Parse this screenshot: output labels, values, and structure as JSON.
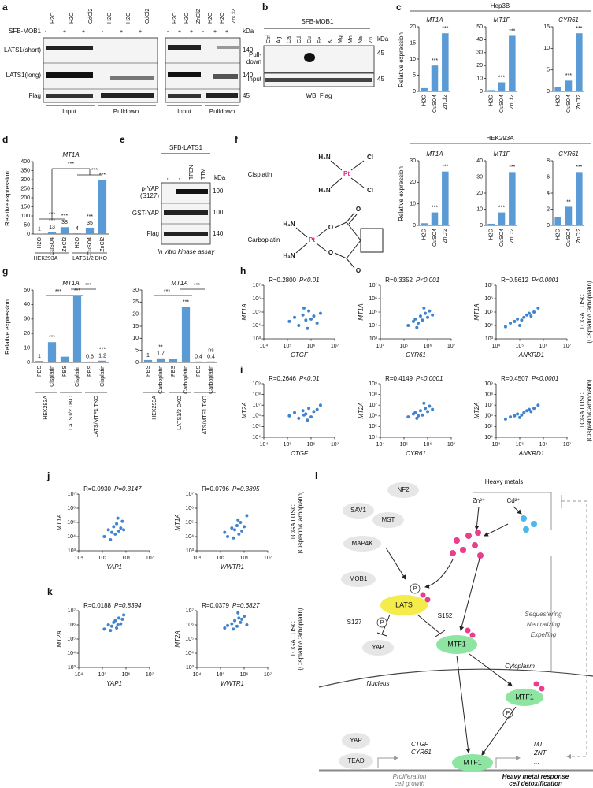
{
  "a": {
    "letter": "a",
    "construct": "SFB-MOB1",
    "lanes": [
      "H2O",
      "H2O",
      "CdCl2",
      "H2O",
      "H2O",
      "CdCl2",
      "H2O",
      "H2O",
      "ZnCl2",
      "H2O",
      "H2O",
      "ZnCl2"
    ],
    "signs": [
      "-",
      "+",
      "+",
      "-",
      "+",
      "+",
      "-",
      "+",
      "+",
      "-",
      "+",
      "+"
    ],
    "rows": [
      "LATS1(short)",
      "LATS1(long)",
      "Flag"
    ],
    "kda": "kDa",
    "markers": [
      "140",
      "140",
      "45"
    ],
    "groups": [
      "Input",
      "Pulldown",
      "Input",
      "Pulldown"
    ]
  },
  "b": {
    "letter": "b",
    "construct": "SFB-MOB1",
    "lanes": [
      "Ctrl",
      "Ag",
      "Ca",
      "Cd",
      "Cu",
      "Fe",
      "K",
      "Mg",
      "Mn",
      "Na",
      "Zn"
    ],
    "rows": [
      "Pull-",
      "down",
      "Input"
    ],
    "kda": "kDa",
    "markers": [
      "45",
      "45"
    ],
    "caption": "WB: Flag"
  },
  "c": {
    "letter": "c",
    "cells": [
      "Hep3B",
      "HEK293A"
    ],
    "ylabel": "Relative expression",
    "categories": [
      "H2O",
      "CuSO4",
      "ZnCl2"
    ],
    "charts": [
      {
        "title": "MT1A",
        "ylim": [
          0,
          20
        ],
        "yticks": [
          0,
          5,
          10,
          15,
          20
        ],
        "values": [
          1,
          8,
          18
        ],
        "stars": [
          null,
          "***",
          "***"
        ]
      },
      {
        "title": "MT1F",
        "ylim": [
          0,
          50
        ],
        "yticks": [
          0,
          10,
          20,
          30,
          40,
          50
        ],
        "values": [
          1,
          7,
          43
        ],
        "stars": [
          null,
          "***",
          "***"
        ]
      },
      {
        "title": "CYR61",
        "ylim": [
          0,
          15
        ],
        "yticks": [
          0,
          5,
          10,
          15
        ],
        "values": [
          1,
          2.5,
          13.5
        ],
        "stars": [
          null,
          "***",
          "***"
        ]
      },
      {
        "title": "MT1A",
        "ylim": [
          0,
          30
        ],
        "yticks": [
          0,
          10,
          20,
          30
        ],
        "values": [
          1,
          6,
          25
        ],
        "stars": [
          null,
          "***",
          "***"
        ]
      },
      {
        "title": "MT1F",
        "ylim": [
          0,
          40
        ],
        "yticks": [
          0,
          10,
          20,
          30,
          40
        ],
        "values": [
          1,
          8,
          33
        ],
        "stars": [
          null,
          "***",
          "***"
        ]
      },
      {
        "title": "CYR61",
        "ylim": [
          0,
          8
        ],
        "yticks": [
          0,
          2,
          4,
          6,
          8
        ],
        "values": [
          1,
          2.3,
          6.6
        ],
        "stars": [
          null,
          "**",
          "***"
        ]
      }
    ]
  },
  "d": {
    "letter": "d",
    "ylabel": "Relative expression",
    "chart": {
      "title": "MT1A",
      "categories": [
        "H2O",
        "CuSO4",
        "ZnCl2",
        "H2O",
        "CuSO4",
        "ZnCl2"
      ],
      "ylim": [
        0,
        400
      ],
      "yticks": [
        0,
        50,
        100,
        150,
        200,
        250,
        300,
        350,
        400
      ],
      "values": [
        1,
        13,
        38,
        4,
        35,
        300
      ],
      "value_labels": [
        "1",
        "13",
        "38",
        "4",
        "35",
        null
      ],
      "stars": [
        null,
        "***",
        "***",
        null,
        "***",
        "***"
      ],
      "bracket_stars": [
        "***",
        "***",
        "***"
      ]
    },
    "groups": [
      "HEK293A",
      "LATS1/2 DKO"
    ]
  },
  "e": {
    "letter": "e",
    "construct": "SFB-LATS1",
    "lanes": [
      "-",
      "-",
      "TPEN",
      "TTM"
    ],
    "kda": "kDa",
    "rows": [
      "p-YAP",
      "(S127)",
      "GST-YAP",
      "Flag"
    ],
    "markers": [
      "100",
      "100",
      "140"
    ],
    "caption": "In vitro kinase assay"
  },
  "f": {
    "letter": "f",
    "names": [
      "Cisplatin",
      "Carboplatin"
    ],
    "cis_atoms": [
      "H₃N",
      "Cl",
      "Pt",
      "H₃N",
      "Cl"
    ],
    "carbo_atoms": [
      "H₃N",
      "H₃N",
      "Pt",
      "O",
      "O",
      "O",
      "O"
    ]
  },
  "g": {
    "letter": "g",
    "ylabel": "Relative expression",
    "groups": [
      "HEK293A",
      "LATS1/2 DKO",
      "LATS/MTF1 TKO"
    ],
    "left": {
      "title": "MT1A",
      "categories": [
        "PBS",
        "Cisplatin",
        "PBS",
        "Cisplatin",
        "PBS",
        "Cisplatin"
      ],
      "ylim": [
        0,
        50
      ],
      "yticks": [
        0,
        10,
        20,
        30,
        40,
        50
      ],
      "values": [
        1,
        14,
        4,
        46,
        0.6,
        1.2
      ],
      "value_labels": [
        "1",
        null,
        null,
        null,
        "0.6",
        "1.2"
      ],
      "stars": [
        null,
        "***",
        null,
        "***",
        null,
        "***"
      ],
      "bracket_stars": [
        "***",
        "***"
      ]
    },
    "right": {
      "title": "MT1A",
      "categories": [
        "PBS",
        "Carboplatin",
        "PBS",
        "Carboplatin",
        "PBS",
        "Carboplatin"
      ],
      "ylim": [
        0,
        30
      ],
      "yticks": [
        0,
        5,
        10,
        15,
        20,
        25,
        30
      ],
      "values": [
        1,
        1.7,
        1.5,
        23,
        0.4,
        0.4
      ],
      "value_labels": [
        "1",
        "1.7",
        null,
        null,
        "0.4",
        "0.4"
      ],
      "stars": [
        null,
        "**",
        null,
        "***",
        null,
        "ns"
      ],
      "bracket_stars": [
        "***",
        "***"
      ]
    }
  },
  "h": {
    "letter": "h",
    "type": "scatter",
    "log": true,
    "side_label": [
      "TCGA LUSC",
      "(Cisplatin/Carboplatin)"
    ],
    "xlim": [
      10000.0,
      10000000.0
    ],
    "xticks": [
      {
        "value": 10000.0,
        "label": "10⁴"
      },
      {
        "value": 100000.0,
        "label": "10⁵"
      },
      {
        "value": 1000000.0,
        "label": "10⁶"
      },
      {
        "value": 10000000.0,
        "label": "10⁷"
      }
    ],
    "ylim": [
      1000.0,
      10000000.0
    ],
    "yticks": [
      {
        "value": 1000.0,
        "label": "10³"
      },
      {
        "value": 10000.0,
        "label": "10⁴"
      },
      {
        "value": 100000.0,
        "label": "10⁵"
      },
      {
        "value": 1000000.0,
        "label": "10⁶"
      },
      {
        "value": 10000000.0,
        "label": "10⁷"
      }
    ],
    "plots": [
      {
        "r": "R=0.2800",
        "p": "P<0.01",
        "ylabel": "MT1A",
        "xlabel": "CTGF",
        "x": [
          120000.0,
          200000.0,
          300000.0,
          450000.0,
          600000.0,
          800000.0,
          1000000.0,
          1300000.0,
          1800000.0,
          2500000.0,
          500000.0,
          700000.0
        ],
        "y": [
          20000.0,
          40000.0,
          10000.0,
          60000.0,
          25000.0,
          120000.0,
          30000.0,
          50000.0,
          15000.0,
          80000.0,
          200000.0,
          6000.0
        ]
      },
      {
        "r": "R=0.3352",
        "p": "P<0.001",
        "ylabel": "MT1A",
        "xlabel": "CYR61",
        "x": [
          150000.0,
          250000.0,
          300000.0,
          400000.0,
          500000.0,
          600000.0,
          800000.0,
          1000000.0,
          1200000.0,
          1600000.0,
          350000.0,
          700000.0
        ],
        "y": [
          10000.0,
          20000.0,
          30000.0,
          15000.0,
          50000.0,
          25000.0,
          80000.0,
          40000.0,
          120000.0,
          60000.0,
          7000.0,
          200000.0
        ]
      },
      {
        "r": "R=0.5612",
        "p": "P<0.0001",
        "ylabel": "MT1A",
        "xlabel": "ANKRD1",
        "x": [
          25000.0,
          40000.0,
          60000.0,
          80000.0,
          100000.0,
          150000.0,
          200000.0,
          300000.0,
          400000.0,
          600000.0,
          120000.0,
          250000.0
        ],
        "y": [
          8000.0,
          15000.0,
          20000.0,
          30000.0,
          10000.0,
          40000.0,
          60000.0,
          50000.0,
          100000.0,
          200000.0,
          25000.0,
          80000.0
        ]
      }
    ]
  },
  "i": {
    "letter": "i",
    "type": "scatter",
    "log": true,
    "side_label": [
      "TCGA LUSC",
      "(Cisplatin/Carboplatin)"
    ],
    "xlim": [
      10000.0,
      10000000.0
    ],
    "xticks": [
      {
        "value": 10000.0,
        "label": "10⁴"
      },
      {
        "value": 100000.0,
        "label": "10⁵"
      },
      {
        "value": 1000000.0,
        "label": "10⁶"
      },
      {
        "value": 10000000.0,
        "label": "10⁷"
      }
    ],
    "ylim": [
      10000.0,
      1000000000.0
    ],
    "yticks": [
      {
        "value": 10000.0,
        "label": "10⁴"
      },
      {
        "value": 100000.0,
        "label": "10⁵"
      },
      {
        "value": 1000000.0,
        "label": "10⁶"
      },
      {
        "value": 10000000.0,
        "label": "10⁷"
      },
      {
        "value": 100000000.0,
        "label": "10⁸"
      },
      {
        "value": 1000000000.0,
        "label": "10⁹"
      }
    ],
    "plots": [
      {
        "r": "R=0.2646",
        "p": "P<0.01",
        "ylabel": "MT2A",
        "xlabel": "CTGF",
        "x": [
          120000.0,
          200000.0,
          300000.0,
          450000.0,
          600000.0,
          800000.0,
          1000000.0,
          1300000.0,
          1800000.0,
          2500000.0,
          500000.0,
          700000.0
        ],
        "y": [
          1000000.0,
          2000000.0,
          600000.0,
          3000000.0,
          1500000.0,
          5000000.0,
          800000.0,
          2500000.0,
          4000000.0,
          10000000.0,
          1200000.0,
          400000.0
        ]
      },
      {
        "r": "R=0.4149",
        "p": "P<0.0001",
        "ylabel": "MT2A",
        "xlabel": "CYR61",
        "x": [
          150000.0,
          250000.0,
          300000.0,
          400000.0,
          500000.0,
          600000.0,
          800000.0,
          1000000.0,
          1200000.0,
          1600000.0,
          350000.0,
          700000.0
        ],
        "y": [
          800000.0,
          1500000.0,
          2000000.0,
          1000000.0,
          3000000.0,
          1200000.0,
          5000000.0,
          2500000.0,
          8000000.0,
          4000000.0,
          600000.0,
          15000000.0
        ]
      },
      {
        "r": "R=0.4507",
        "p": "P<0.0001",
        "ylabel": "MT2A",
        "xlabel": "ANKRD1",
        "x": [
          25000.0,
          40000.0,
          60000.0,
          80000.0,
          100000.0,
          150000.0,
          200000.0,
          300000.0,
          400000.0,
          600000.0,
          120000.0,
          250000.0
        ],
        "y": [
          500000.0,
          800000.0,
          1000000.0,
          1500000.0,
          700000.0,
          2000000.0,
          3000000.0,
          2500000.0,
          5000000.0,
          10000000.0,
          1200000.0,
          4000000.0
        ]
      }
    ]
  },
  "j": {
    "letter": "j",
    "type": "scatter",
    "log": true,
    "side_label": [
      "TCGA LUSC",
      "(Cisplatin/Carboplatin)"
    ],
    "xlim": [
      10000.0,
      10000000.0
    ],
    "xticks": [
      {
        "value": 10000.0,
        "label": "10⁴"
      },
      {
        "value": 100000.0,
        "label": "10⁵"
      },
      {
        "value": 1000000.0,
        "label": "10⁶"
      },
      {
        "value": 10000000.0,
        "label": "10⁷"
      }
    ],
    "ylim": [
      1000.0,
      10000000.0
    ],
    "yticks": [
      {
        "value": 1000.0,
        "label": "10³"
      },
      {
        "value": 10000.0,
        "label": "10⁴"
      },
      {
        "value": 100000.0,
        "label": "10⁵"
      },
      {
        "value": 1000000.0,
        "label": "10⁶"
      },
      {
        "value": 10000000.0,
        "label": "10⁷"
      }
    ],
    "plots": [
      {
        "r": "R=0.0930",
        "p": "P=0.3147",
        "ylabel": "MT1A",
        "xlabel": "YAP1",
        "x": [
          120000.0,
          180000.0,
          250000.0,
          300000.0,
          350000.0,
          400000.0,
          500000.0,
          600000.0,
          700000.0,
          800000.0,
          220000.0,
          450000.0
        ],
        "y": [
          10000.0,
          30000.0,
          20000.0,
          50000.0,
          15000.0,
          80000.0,
          25000.0,
          40000.0,
          120000.0,
          30000.0,
          6000.0,
          200000.0
        ]
      },
      {
        "r": "R=0.0796",
        "p": "P=0.3895",
        "ylabel": "MT1A",
        "xlabel": "WWTR1",
        "x": [
          150000.0,
          200000.0,
          300000.0,
          400000.0,
          500000.0,
          600000.0,
          700000.0,
          800000.0,
          1000000.0,
          1300000.0,
          350000.0,
          550000.0
        ],
        "y": [
          20000.0,
          10000.0,
          40000.0,
          30000.0,
          60000.0,
          15000.0,
          100000.0,
          25000.0,
          50000.0,
          300000.0,
          8000.0,
          150000.0
        ]
      }
    ]
  },
  "k": {
    "letter": "k",
    "type": "scatter",
    "log": true,
    "side_label": [
      "TCGA LUSC",
      "(Cisplatin/Carboplatin)"
    ],
    "xlim": [
      10000.0,
      10000000.0
    ],
    "xticks": [
      {
        "value": 10000.0,
        "label": "10⁴"
      },
      {
        "value": 100000.0,
        "label": "10⁵"
      },
      {
        "value": 1000000.0,
        "label": "10⁶"
      },
      {
        "value": 10000000.0,
        "label": "10⁷"
      }
    ],
    "ylim": [
      1000.0,
      10000000.0
    ],
    "yticks": [
      {
        "value": 1000.0,
        "label": "10³"
      },
      {
        "value": 10000.0,
        "label": "10⁴"
      },
      {
        "value": 100000.0,
        "label": "10⁵"
      },
      {
        "value": 1000000.0,
        "label": "10⁶"
      },
      {
        "value": 10000000.0,
        "label": "10⁷"
      }
    ],
    "plots": [
      {
        "r": "R=0.0188",
        "p": "P=0.8394",
        "ylabel": "MT2A",
        "xlabel": "YAP1",
        "x": [
          120000.0,
          180000.0,
          250000.0,
          300000.0,
          350000.0,
          400000.0,
          500000.0,
          600000.0,
          700000.0,
          800000.0,
          220000.0,
          450000.0
        ],
        "y": [
          500000.0,
          1000000.0,
          800000.0,
          1500000.0,
          2000000.0,
          600000.0,
          3000000.0,
          1200000.0,
          2500000.0,
          5000000.0,
          400000.0,
          1000000.0
        ]
      },
      {
        "r": "R=0.0379",
        "p": "P=0.6827",
        "ylabel": "MT2A",
        "xlabel": "WWTR1",
        "x": [
          150000.0,
          200000.0,
          300000.0,
          400000.0,
          500000.0,
          600000.0,
          700000.0,
          800000.0,
          1000000.0,
          1300000.0,
          350000.0,
          550000.0
        ],
        "y": [
          600000.0,
          900000.0,
          1200000.0,
          2000000.0,
          800000.0,
          3000000.0,
          1500000.0,
          2500000.0,
          4000000.0,
          1000000.0,
          500000.0,
          7000000.0
        ]
      }
    ]
  },
  "l": {
    "letter": "l",
    "nodes": [
      "NF2",
      "SAV1",
      "MST",
      "MAP4K",
      "Heavy metals",
      "Zn²⁺",
      "Cd²⁺",
      "MOB1",
      "LATS",
      "S127",
      "S152",
      "YAP",
      "MTF1",
      "MTF1",
      "YAP",
      "TEAD",
      "MTF1"
    ],
    "phospho": [
      "P",
      "P",
      "P"
    ],
    "actions": [
      "Sequestering",
      "Neutralizing",
      "Expelling"
    ],
    "compartments": [
      "Cytoplasm",
      "Nucleus"
    ],
    "genes_left": [
      "CTGF",
      "CYR61"
    ],
    "genes_right": [
      "MT",
      "ZNT",
      "..."
    ],
    "outcomes_left": [
      "Proliferation",
      "cell growth"
    ],
    "outcomes_right": [
      "Heavy metal response",
      "cell detoxification"
    ]
  }
}
